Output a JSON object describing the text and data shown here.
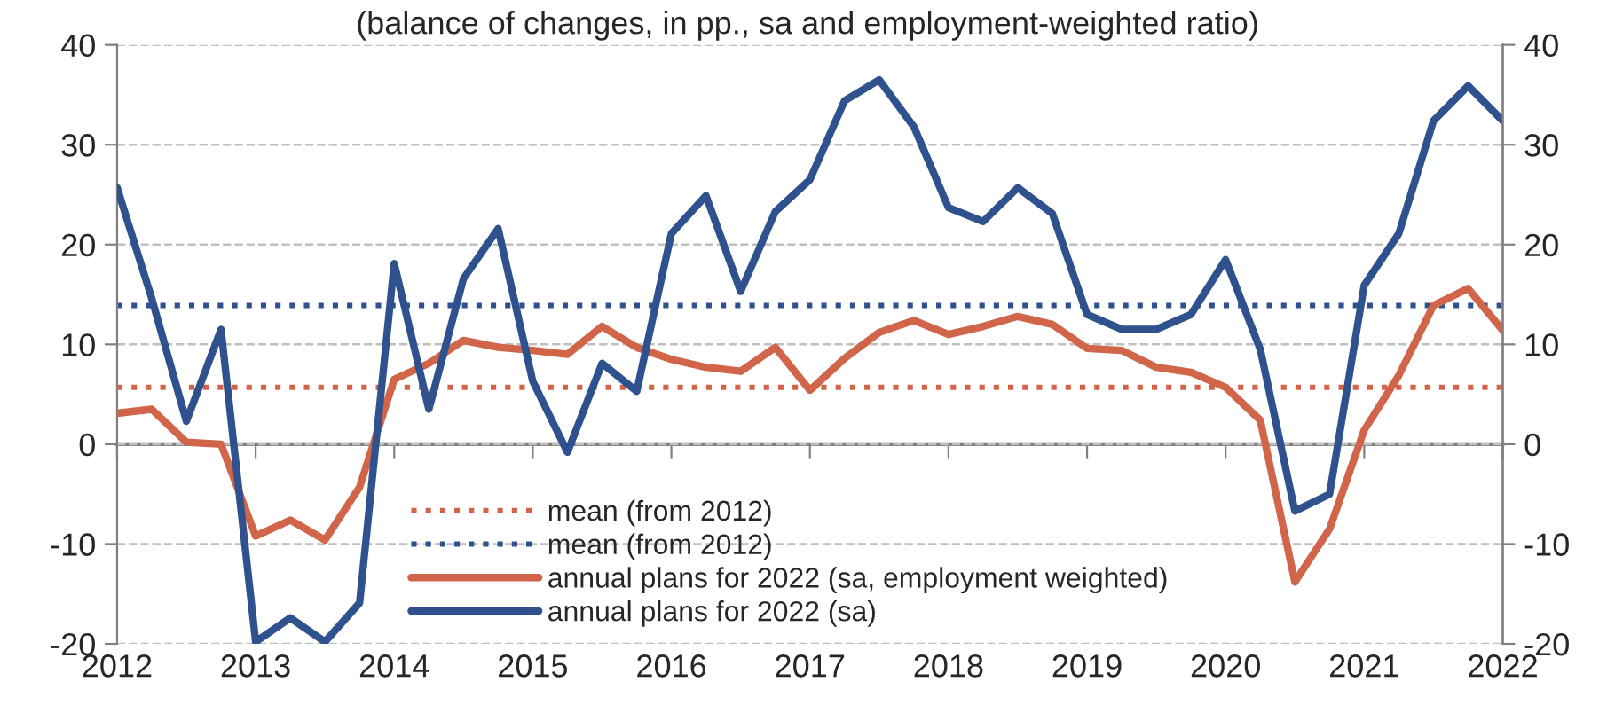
{
  "chart_data": {
    "type": "line",
    "subtitle": "(balance of changes, in pp., sa and employment-weighted ratio)",
    "x": [
      2012.0,
      2012.25,
      2012.5,
      2012.75,
      2013.0,
      2013.25,
      2013.5,
      2013.75,
      2014.0,
      2014.25,
      2014.5,
      2014.75,
      2015.0,
      2015.25,
      2015.5,
      2015.75,
      2016.0,
      2016.25,
      2016.5,
      2016.75,
      2017.0,
      2017.25,
      2017.5,
      2017.75,
      2018.0,
      2018.25,
      2018.5,
      2018.75,
      2019.0,
      2019.25,
      2019.5,
      2019.75,
      2020.0,
      2020.25,
      2020.5,
      2020.75,
      2021.0,
      2021.25,
      2021.5,
      2021.75,
      2022.0
    ],
    "series": [
      {
        "name": "annual plans for 2022 (sa, employment weighted)",
        "color": "#d0654a",
        "values": [
          3.1,
          3.5,
          0.2,
          0.0,
          -9.2,
          -7.6,
          -9.6,
          -4.3,
          6.5,
          8.1,
          10.4,
          9.7,
          9.4,
          9.0,
          11.8,
          9.7,
          8.5,
          7.7,
          7.3,
          9.7,
          5.4,
          8.6,
          11.2,
          12.4,
          11.0,
          11.8,
          12.8,
          12.0,
          9.6,
          9.4,
          7.7,
          7.2,
          5.7,
          2.4,
          -13.8,
          -8.5,
          1.4,
          6.9,
          13.9,
          15.6,
          11.4
        ]
      },
      {
        "name": "annual plans for 2022 (sa)",
        "color": "#2f528f",
        "values": [
          25.7,
          14.6,
          2.3,
          11.5,
          -19.8,
          -17.4,
          -19.8,
          -15.9,
          18.1,
          3.5,
          16.6,
          21.6,
          6.3,
          -0.8,
          8.1,
          5.3,
          21.1,
          24.9,
          15.3,
          23.3,
          26.5,
          34.4,
          36.5,
          31.8,
          23.7,
          22.3,
          25.7,
          23.1,
          13.0,
          11.5,
          11.5,
          13.0,
          18.5,
          9.5,
          -6.7,
          -5.0,
          15.9,
          21.1,
          32.4,
          35.9,
          32.4
        ]
      }
    ],
    "ref_lines": [
      {
        "axis": "y",
        "value": 5.7,
        "label": "mean (from 2012)",
        "color": "#d0654a",
        "line_style": "dotted"
      },
      {
        "axis": "y",
        "value": 13.9,
        "label": "mean (from 2012)",
        "color": "#2f528f",
        "line_style": "dotted"
      }
    ],
    "xlim": [
      2012,
      2022
    ],
    "xticks": [
      2012,
      2013,
      2014,
      2015,
      2016,
      2017,
      2018,
      2019,
      2020,
      2021,
      2022
    ],
    "ylim": [
      -20,
      40
    ],
    "yticks": [
      -20,
      -10,
      0,
      10,
      20,
      30,
      40
    ],
    "y2lim": [
      -20,
      40
    ],
    "y2ticks": [
      -20,
      -10,
      0,
      10,
      20,
      30,
      40
    ],
    "grid": "y",
    "legend": "bottom",
    "line_style": "solid",
    "marker": "none"
  }
}
